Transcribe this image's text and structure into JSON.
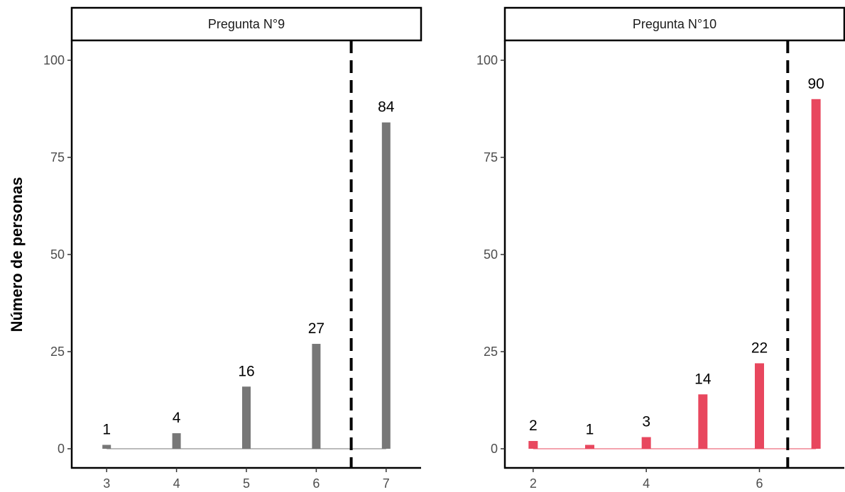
{
  "chart_data": {
    "type": "bar",
    "ylabel": "Número de personas",
    "ylim": [
      0,
      100
    ],
    "y_ticks": [
      0,
      25,
      50,
      75,
      100
    ],
    "grid": false,
    "panels": [
      {
        "title": "Pregunta N°9",
        "x_ticks": [
          "3",
          "4",
          "5",
          "6",
          "7"
        ],
        "x": [
          3,
          4,
          5,
          6,
          7
        ],
        "values": [
          1,
          4,
          16,
          27,
          84
        ],
        "data_labels": [
          "1",
          "4",
          "16",
          "27",
          "84"
        ],
        "reference_line_x": 6.5,
        "bar_color": "#777777",
        "xlim": [
          2.5,
          7.5
        ]
      },
      {
        "title": "Pregunta N°10",
        "x_ticks": [
          "2",
          "4",
          "6"
        ],
        "x_tick_values": [
          2,
          4,
          6
        ],
        "x": [
          2,
          3,
          4,
          5,
          6,
          7
        ],
        "values": [
          2,
          1,
          3,
          14,
          22,
          90
        ],
        "data_labels": [
          "2",
          "1",
          "3",
          "14",
          "22",
          "90"
        ],
        "reference_line_x": 6.5,
        "bar_color": "#e8475e",
        "xlim": [
          1.5,
          7.5
        ]
      }
    ]
  }
}
